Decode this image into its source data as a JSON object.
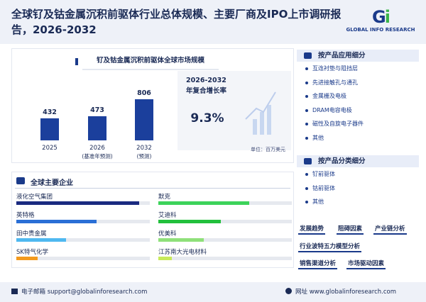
{
  "header": {
    "title": "全球钌及钴金属沉积前驱体行业总体规模、主要厂商及IPO上市调研报告，2026-2032",
    "logo": "GLOBAL INFO RESEARCH"
  },
  "chart_data": {
    "type": "bar",
    "title": "钌及钴金属沉积前驱体全球市场规模",
    "categories": [
      "2025",
      "2026",
      "2032"
    ],
    "category_notes": [
      null,
      "(基准年预测)",
      "(预测)"
    ],
    "values": [
      432,
      473,
      806
    ],
    "color": "#1b3f9c",
    "cagr": {
      "period": "2026-2032",
      "label": "年复合增长率",
      "value": "9.3%"
    },
    "unit": "单位：百万美元"
  },
  "companies": {
    "title": "全球主要企业",
    "items": [
      "液化空气集团",
      "默克",
      "英特格",
      "艾迪科",
      "田中贵金属",
      "优美科",
      "SK特气化学",
      "江苏南大光电材料"
    ]
  },
  "segments": {
    "application": {
      "title": "按产品应用细分",
      "items": [
        "互连衬垫与阻挡层",
        "先进接触孔与通孔",
        "金属栅及电极",
        "DRAM电容电极",
        "磁性及自旋电子器件",
        "其他"
      ]
    },
    "type": {
      "title": "按产品分类细分",
      "items": [
        "钌前驱体",
        "钴前驱体",
        "其他"
      ]
    }
  },
  "tags": [
    "发展趋势",
    "阻碍因素",
    "产业链分析",
    "行业波特五力模型分析",
    "销售渠道分析",
    "市场驱动因素"
  ],
  "footer": {
    "email_label": "电子邮箱",
    "email": "support@globalinforesearch.com",
    "web_label": "网址",
    "web": "www.globalinforesearch.com"
  }
}
